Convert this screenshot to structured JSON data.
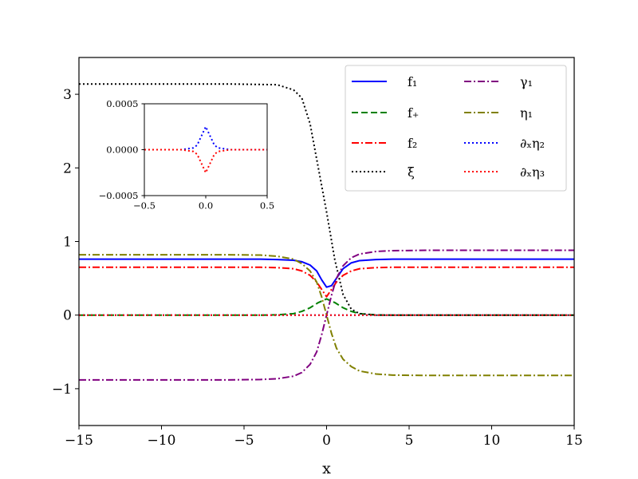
{
  "chart_data": {
    "type": "line",
    "title": "",
    "xlabel": "x",
    "ylabel": "",
    "xlim": [
      -15,
      15
    ],
    "ylim": [
      -1.5,
      3.5
    ],
    "xticks": [
      -15,
      -10,
      -5,
      0,
      5,
      10,
      15
    ],
    "xtick_labels": [
      "−15",
      "−10",
      "−5",
      "0",
      "5",
      "10",
      "15"
    ],
    "yticks": [
      -1,
      0,
      1,
      2,
      3
    ],
    "ytick_labels": [
      "−1",
      "0",
      "1",
      "2",
      "3"
    ],
    "grid": false,
    "legend": {
      "placement": "top-right",
      "columns": 2
    },
    "series": [
      {
        "name": "f₁",
        "color": "#0000ff",
        "style": "solid",
        "x": [
          -15,
          -8,
          -6,
          -4,
          -3,
          -2,
          -1.5,
          -1,
          -0.6,
          -0.3,
          0,
          0.3,
          0.6,
          1,
          1.5,
          2,
          3,
          4,
          6,
          8,
          15
        ],
        "y": [
          0.76,
          0.76,
          0.76,
          0.76,
          0.755,
          0.745,
          0.725,
          0.68,
          0.6,
          0.48,
          0.38,
          0.4,
          0.5,
          0.63,
          0.71,
          0.74,
          0.755,
          0.76,
          0.76,
          0.76,
          0.76
        ]
      },
      {
        "name": "f₊",
        "color": "#008000",
        "style": "dashed",
        "x": [
          -15,
          -6,
          -4,
          -3,
          -2,
          -1.5,
          -1,
          -0.5,
          0,
          0.5,
          1,
          1.5,
          2,
          3,
          4,
          6,
          15
        ],
        "y": [
          0,
          0,
          0,
          0.003,
          0.02,
          0.05,
          0.1,
          0.17,
          0.22,
          0.17,
          0.1,
          0.05,
          0.02,
          0.003,
          0,
          0,
          0
        ]
      },
      {
        "name": "f₂",
        "color": "#ff0000",
        "style": "dashdot",
        "x": [
          -15,
          -8,
          -6,
          -4,
          -3,
          -2,
          -1.5,
          -1,
          -0.6,
          -0.3,
          0,
          0.3,
          0.6,
          1,
          1.5,
          2,
          3,
          4,
          6,
          8,
          15
        ],
        "y": [
          0.65,
          0.65,
          0.65,
          0.65,
          0.645,
          0.63,
          0.6,
          0.54,
          0.45,
          0.35,
          0.25,
          0.35,
          0.45,
          0.54,
          0.6,
          0.63,
          0.645,
          0.65,
          0.65,
          0.65,
          0.65
        ]
      },
      {
        "name": "ξ",
        "color": "#000000",
        "style": "dotted",
        "x": [
          -15,
          -6,
          -3,
          -2,
          -1.5,
          -1,
          -0.5,
          0,
          0.5,
          1,
          1.5,
          2,
          3,
          6,
          15
        ],
        "y": [
          3.14,
          3.14,
          3.13,
          3.06,
          2.95,
          2.6,
          2.0,
          1.4,
          0.75,
          0.28,
          0.08,
          0.02,
          0.0,
          0.0,
          0.0
        ]
      },
      {
        "name": "γ₁",
        "color": "#800080",
        "style": "dashdot",
        "x": [
          -15,
          -6,
          -4,
          -3,
          -2,
          -1.5,
          -1,
          -0.6,
          -0.3,
          0,
          0.3,
          0.6,
          1,
          1.5,
          2,
          3,
          4,
          6,
          15
        ],
        "y": [
          -0.88,
          -0.88,
          -0.875,
          -0.865,
          -0.83,
          -0.78,
          -0.67,
          -0.5,
          -0.27,
          0.0,
          0.27,
          0.5,
          0.67,
          0.78,
          0.83,
          0.865,
          0.875,
          0.88,
          0.88
        ]
      },
      {
        "name": "η₁",
        "color": "#808000",
        "style": "dashdot",
        "x": [
          -15,
          -6,
          -4,
          -3,
          -2,
          -1.5,
          -1,
          -0.6,
          -0.3,
          0,
          0.3,
          0.6,
          1,
          1.5,
          2,
          3,
          4,
          6,
          15
        ],
        "y": [
          0.82,
          0.82,
          0.815,
          0.8,
          0.76,
          0.7,
          0.6,
          0.45,
          0.25,
          0.0,
          -0.25,
          -0.45,
          -0.6,
          -0.7,
          -0.76,
          -0.8,
          -0.815,
          -0.82,
          -0.82
        ]
      },
      {
        "name": "∂ₓη₂",
        "color": "#0000ff",
        "style": "dotted",
        "x": [
          -15,
          -0.5,
          0,
          0.5,
          15
        ],
        "y": [
          0,
          0,
          0,
          0,
          0
        ]
      },
      {
        "name": "∂ₓη₃",
        "color": "#ff0000",
        "style": "dotted",
        "x": [
          -15,
          -0.5,
          0,
          0.5,
          15
        ],
        "y": [
          0,
          0,
          0,
          0,
          0
        ]
      }
    ],
    "inset": {
      "xlim": [
        -0.5,
        0.5
      ],
      "ylim": [
        -0.0005,
        0.0005
      ],
      "xticks": [
        -0.5,
        0.0,
        0.5
      ],
      "xtick_labels": [
        "−0.5",
        "0.0",
        "0.5"
      ],
      "yticks": [
        -0.0005,
        0.0,
        0.0005
      ],
      "ytick_labels": [
        "−0.0005",
        "0.0000",
        "0.0005"
      ],
      "series": [
        {
          "name": "∂ₓη₂",
          "color": "#0000ff",
          "style": "dotted",
          "x": [
            -0.5,
            -0.2,
            -0.1,
            -0.07,
            0,
            0.07,
            0.1,
            0.2,
            0.5
          ],
          "y": [
            0,
            0,
            2e-05,
            5e-05,
            0.00025,
            5e-05,
            2e-05,
            0,
            0
          ]
        },
        {
          "name": "∂ₓη₃",
          "color": "#ff0000",
          "style": "dotted",
          "x": [
            -0.5,
            -0.2,
            -0.1,
            -0.07,
            0,
            0.07,
            0.1,
            0.2,
            0.5
          ],
          "y": [
            0,
            0,
            -2e-05,
            -5e-05,
            -0.00025,
            -5e-05,
            -2e-05,
            0,
            0
          ]
        }
      ]
    }
  }
}
